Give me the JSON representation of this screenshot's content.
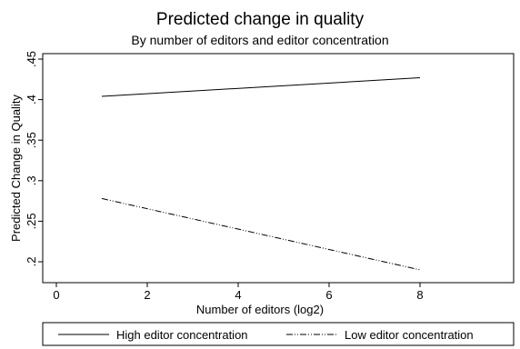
{
  "chart_data": {
    "type": "line",
    "title": "Predicted change in quality",
    "subtitle": "By number of editors and editor concentration",
    "xlabel": "Number of editors (log2)",
    "ylabel": "Predicted Change in Quality",
    "xlim": [
      0,
      10
    ],
    "ylim": [
      0.18,
      0.45
    ],
    "xticks": [
      0,
      2,
      4,
      6,
      8
    ],
    "xtick_labels": [
      "0",
      "2",
      "4",
      "6",
      "8"
    ],
    "yticks": [
      0.2,
      0.25,
      0.3,
      0.35,
      0.4,
      0.45
    ],
    "ytick_labels": [
      ".2",
      ".25",
      ".3",
      ".35",
      ".4",
      ".45"
    ],
    "grid": false,
    "legend_position": "bottom",
    "series": [
      {
        "name": "High editor concentration",
        "x": [
          1,
          8
        ],
        "y": [
          0.404,
          0.427
        ],
        "line_style": "solid",
        "color": "#000000"
      },
      {
        "name": "Low editor concentration",
        "x": [
          1,
          8
        ],
        "y": [
          0.278,
          0.19
        ],
        "line_style": "dash-dot-dot",
        "color": "#000000"
      }
    ]
  }
}
